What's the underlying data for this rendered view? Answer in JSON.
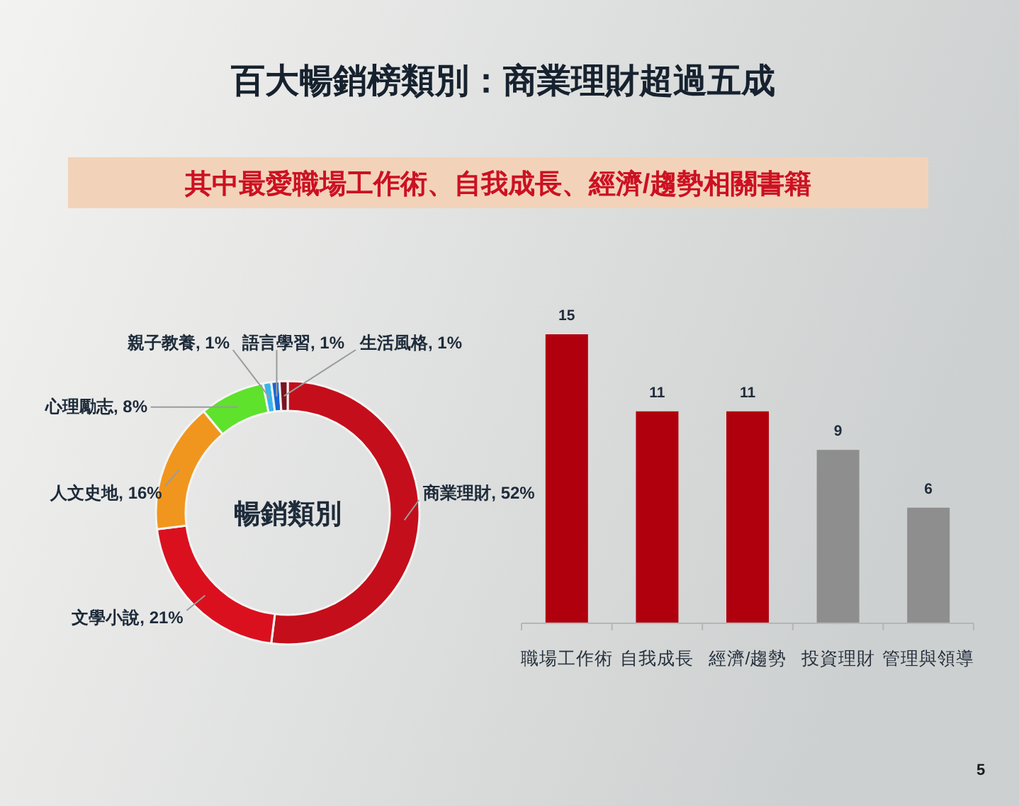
{
  "chart_data": [
    {
      "type": "other",
      "title": "百大暢銷榜類別：商業理財超過五成",
      "subtitle": "其中最愛職場工作術、自我成長、經濟/趨勢相關書籍",
      "annotations": [
        "5"
      ]
    },
    {
      "type": "donut",
      "title": "暢銷類別",
      "categories": [
        "商業理財",
        "文學小說",
        "人文史地",
        "心理勵志",
        "親子教養",
        "語言學習",
        "生活風格"
      ],
      "values": [
        52,
        21,
        16,
        8,
        1,
        1,
        1
      ],
      "colors": [
        "#c40e1b",
        "#da101f",
        "#f0961e",
        "#5ee22c",
        "#3ab4ec",
        "#1a64d6",
        "#7a1422"
      ],
      "value_labels": [
        "52%",
        "21%",
        "16%",
        "8%",
        "1%",
        "1%",
        "1%"
      ]
    },
    {
      "type": "bar",
      "categories": [
        "職場工作術",
        "自我成長",
        "經濟/趨勢",
        "投資理財",
        "管理與領導"
      ],
      "values": [
        15,
        11,
        11,
        9,
        6
      ],
      "colors": [
        "#b0000e",
        "#b0000e",
        "#b0000e",
        "#8e8e8e",
        "#8e8e8e"
      ],
      "data_labels": true
    }
  ]
}
